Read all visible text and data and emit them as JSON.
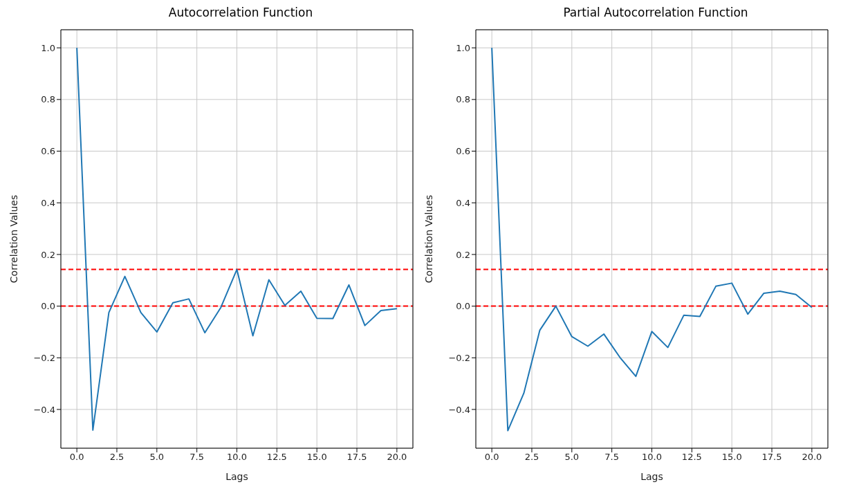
{
  "chart_data": [
    {
      "type": "line",
      "title": "Autocorrelation Function",
      "xlabel": "Lags",
      "ylabel": "Correlation Values",
      "x": [
        0,
        1,
        2,
        3,
        4,
        5,
        6,
        7,
        8,
        9,
        10,
        11,
        12,
        13,
        14,
        15,
        16,
        17,
        18,
        19,
        20
      ],
      "series": [
        {
          "color": "#1f77b4",
          "values": [
            1.0,
            -0.48,
            -0.025,
            0.115,
            -0.025,
            -0.1,
            0.013,
            0.028,
            -0.103,
            -0.005,
            0.142,
            -0.115,
            0.102,
            0.003,
            0.058,
            -0.047,
            -0.048,
            0.082,
            -0.075,
            -0.017,
            -0.01
          ]
        }
      ],
      "xlim": [
        -1,
        21
      ],
      "xticks": [
        {
          "value": 0,
          "label": "0.0"
        },
        {
          "value": 2.5,
          "label": "2.5"
        },
        {
          "value": 5,
          "label": "5.0"
        },
        {
          "value": 7.5,
          "label": "7.5"
        },
        {
          "value": 10,
          "label": "10.0"
        },
        {
          "value": 12.5,
          "label": "12.5"
        },
        {
          "value": 15,
          "label": "15.0"
        },
        {
          "value": 17.5,
          "label": "17.5"
        },
        {
          "value": 20,
          "label": "20.0"
        }
      ],
      "ylim": [
        -0.55,
        1.07
      ],
      "yticks": [
        {
          "value": -0.4,
          "label": "−0.4"
        },
        {
          "value": -0.2,
          "label": "−0.2"
        },
        {
          "value": 0,
          "label": "0.0"
        },
        {
          "value": 0.2,
          "label": "0.2"
        },
        {
          "value": 0.4,
          "label": "0.4"
        },
        {
          "value": 0.6,
          "label": "0.6"
        },
        {
          "value": 0.8,
          "label": "0.8"
        },
        {
          "value": 1,
          "label": "1.0"
        }
      ],
      "ref_lines": [
        {
          "axis": "y",
          "value": 0.142,
          "color": "#ff0000",
          "line_style": "dashed"
        },
        {
          "axis": "y",
          "value": 0,
          "color": "#ff0000",
          "line_style": "dashed"
        }
      ],
      "grid": true,
      "legend": false,
      "marker": "none",
      "line_style": "solid"
    },
    {
      "type": "line",
      "title": "Partial Autocorrelation Function",
      "xlabel": "Lags",
      "ylabel": "Correlation Values",
      "x": [
        0,
        1,
        2,
        3,
        4,
        5,
        6,
        7,
        8,
        9,
        10,
        11,
        12,
        13,
        14,
        15,
        16,
        17,
        18,
        19,
        20
      ],
      "series": [
        {
          "color": "#1f77b4",
          "values": [
            1.0,
            -0.482,
            -0.337,
            -0.093,
            0.0,
            -0.118,
            -0.155,
            -0.108,
            -0.198,
            -0.272,
            -0.098,
            -0.16,
            -0.035,
            -0.04,
            0.077,
            0.089,
            -0.031,
            0.05,
            0.058,
            0.045,
            -0.005
          ]
        }
      ],
      "xlim": [
        -1,
        21
      ],
      "xticks": [
        {
          "value": 0,
          "label": "0.0"
        },
        {
          "value": 2.5,
          "label": "2.5"
        },
        {
          "value": 5,
          "label": "5.0"
        },
        {
          "value": 7.5,
          "label": "7.5"
        },
        {
          "value": 10,
          "label": "10.0"
        },
        {
          "value": 12.5,
          "label": "12.5"
        },
        {
          "value": 15,
          "label": "15.0"
        },
        {
          "value": 17.5,
          "label": "17.5"
        },
        {
          "value": 20,
          "label": "20.0"
        }
      ],
      "ylim": [
        -0.55,
        1.07
      ],
      "yticks": [
        {
          "value": -0.4,
          "label": "−0.4"
        },
        {
          "value": -0.2,
          "label": "−0.2"
        },
        {
          "value": 0,
          "label": "0.0"
        },
        {
          "value": 0.2,
          "label": "0.2"
        },
        {
          "value": 0.4,
          "label": "0.4"
        },
        {
          "value": 0.6,
          "label": "0.6"
        },
        {
          "value": 0.8,
          "label": "0.8"
        },
        {
          "value": 1,
          "label": "1.0"
        }
      ],
      "ref_lines": [
        {
          "axis": "y",
          "value": 0.142,
          "color": "#ff0000",
          "line_style": "dashed"
        },
        {
          "axis": "y",
          "value": 0,
          "color": "#ff0000",
          "line_style": "dashed"
        }
      ],
      "grid": true,
      "legend": false,
      "marker": "none",
      "line_style": "solid"
    }
  ]
}
